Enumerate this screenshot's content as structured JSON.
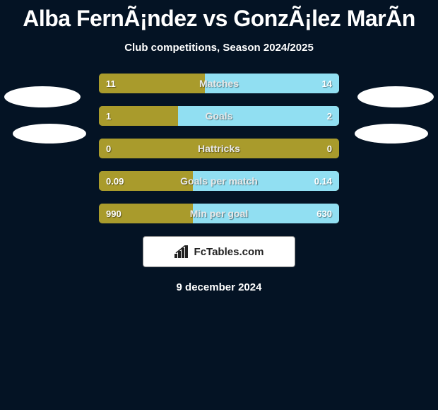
{
  "colors": {
    "background": "#041324",
    "text_main": "#ffffff",
    "text_label": "#e8e8e8",
    "bar_left": "#a99b2c",
    "bar_right": "#91dff2",
    "footer_bg": "#ffffff",
    "footer_text": "#222222"
  },
  "header": {
    "title": "Alba FernÃ¡ndez vs GonzÃ¡lez MarÃ­n",
    "subtitle": "Club competitions, Season 2024/2025"
  },
  "stats": [
    {
      "label": "Matches",
      "left_val": "11",
      "right_val": "14",
      "left_pct": 44,
      "right_pct": 56
    },
    {
      "label": "Goals",
      "left_val": "1",
      "right_val": "2",
      "left_pct": 33,
      "right_pct": 67
    },
    {
      "label": "Hattricks",
      "left_val": "0",
      "right_val": "0",
      "left_pct": 0,
      "right_pct": 0
    },
    {
      "label": "Goals per match",
      "left_val": "0.09",
      "right_val": "0.14",
      "left_pct": 39,
      "right_pct": 61
    },
    {
      "label": "Min per goal",
      "left_val": "990",
      "right_val": "630",
      "left_pct": 39,
      "right_pct": 61
    }
  ],
  "footer": {
    "brand_text": "FcTables.com"
  },
  "date": "9 december 2024"
}
